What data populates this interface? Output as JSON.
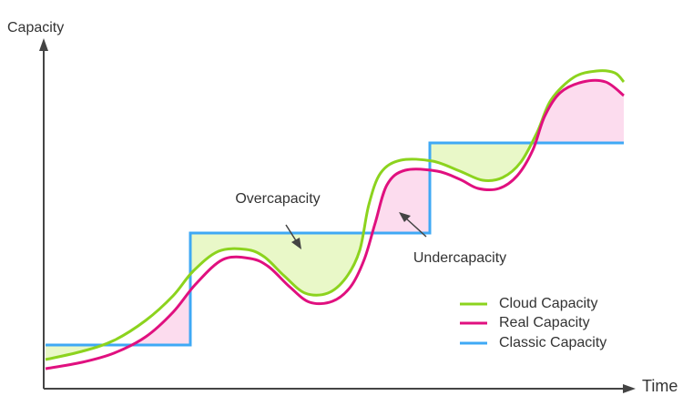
{
  "axes": {
    "y_label": "Capacity",
    "x_label": "Time"
  },
  "annotations": {
    "over": "Overcapacity",
    "under": "Undercapacity"
  },
  "legend": [
    "Cloud Capacity",
    "Real Capacity",
    "Classic Capacity"
  ]
}
